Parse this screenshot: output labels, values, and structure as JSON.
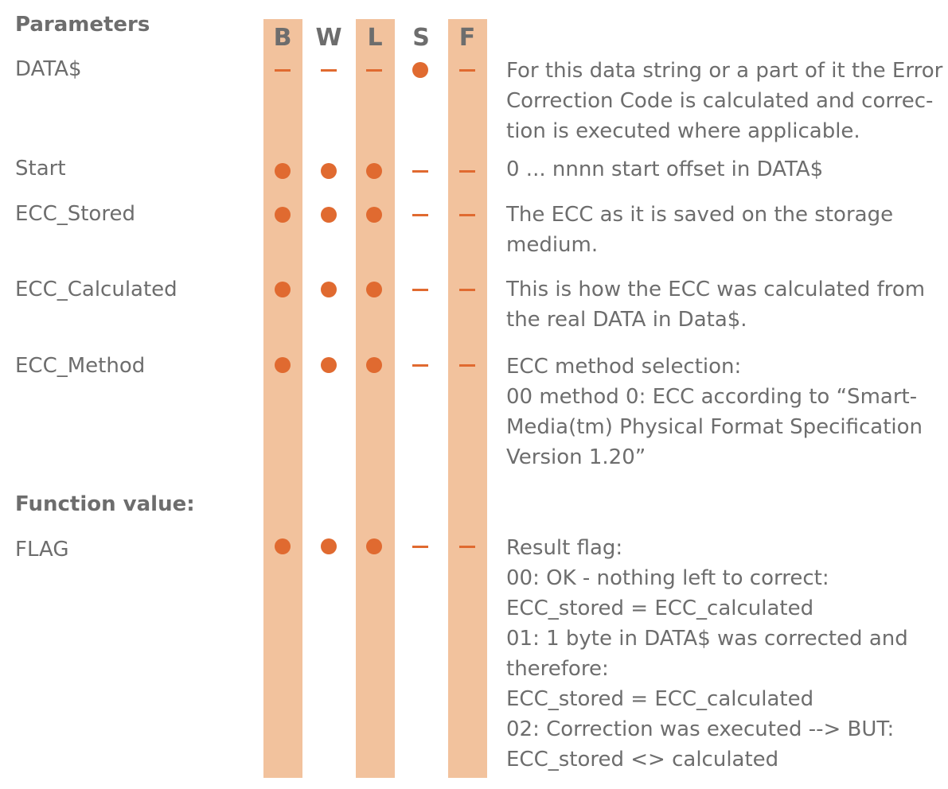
{
  "header": {
    "section_title": "Parameters",
    "columns": [
      "B",
      "W",
      "L",
      "S",
      "F"
    ],
    "accent_color": "#e06a30",
    "band_color": "#f2c29d"
  },
  "params": [
    {
      "name": "DATA$",
      "marks": [
        "dash",
        "dash",
        "dash",
        "dot",
        "dash"
      ],
      "description": [
        "For this data string or a part of it the Error",
        "Correction Code is calculated and correc-",
        "tion is executed where applicable."
      ]
    },
    {
      "name": "Start",
      "marks": [
        "dot",
        "dot",
        "dot",
        "dash",
        "dash"
      ],
      "description": [
        "0 ... nnnn start offset in DATA$"
      ]
    },
    {
      "name": "ECC_Stored",
      "marks": [
        "dot",
        "dot",
        "dot",
        "dash",
        "dash"
      ],
      "description": [
        "The ECC as it is saved on the storage",
        "medium."
      ]
    },
    {
      "name": "ECC_Calculated",
      "marks": [
        "dot",
        "dot",
        "dot",
        "dash",
        "dash"
      ],
      "description": [
        "This is how the ECC was calculated from",
        "the real DATA in Data$."
      ]
    },
    {
      "name": "ECC_Method",
      "marks": [
        "dot",
        "dot",
        "dot",
        "dash",
        "dash"
      ],
      "description": [
        "ECC method selection:",
        "00 method 0:  ECC according to “Smart-",
        "Media(tm) Physical Format Specification",
        "Version 1.20”"
      ]
    }
  ],
  "function_section": {
    "title": "Function value:",
    "items": [
      {
        "name": "FLAG",
        "marks": [
          "dot",
          "dot",
          "dot",
          "dash",
          "dash"
        ],
        "description": [
          "Result flag:",
          "00: OK - nothing left to correct:",
          "ECC_stored =  ECC_calculated",
          "01: 1 byte in DATA$ was corrected and",
          "therefore:",
          "ECC_stored =  ECC_calculated",
          "02: Correction was executed --> BUT:",
          "ECC_stored <> calculated"
        ]
      }
    ]
  }
}
